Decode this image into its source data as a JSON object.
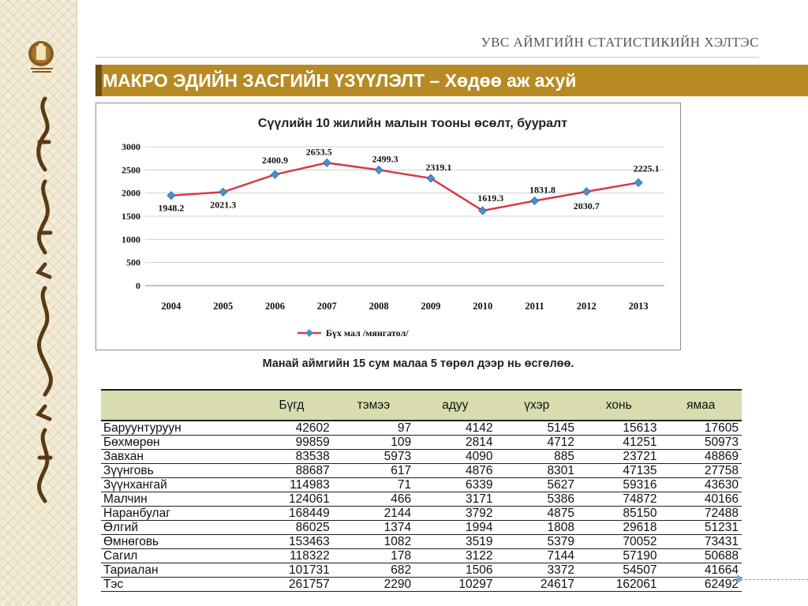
{
  "header": {
    "title": "УВС АЙМГИЙН СТАТИСТИКИЙН ХЭЛТЭС"
  },
  "banner": {
    "title": "МАКРО ЭДИЙН ЗАСГИЙН ҮЗҮҮЛЭЛТ – Хөдөө аж ахуй"
  },
  "colors": {
    "accent": "#b88a24",
    "line": "#4a90c8",
    "table_header": "#d8dcae"
  },
  "chart_data": {
    "type": "line",
    "title": "Сүүлийн 10 жилийн малын тооны өсөлт, бууралт",
    "categories": [
      "2004",
      "2005",
      "2006",
      "2007",
      "2008",
      "2009",
      "2010",
      "2011",
      "2012",
      "2013"
    ],
    "series": [
      {
        "name": "Бүх мал /мянгатол/",
        "values": [
          1948.2,
          2021.3,
          2400.9,
          2653.5,
          2499.3,
          2319.1,
          1619.3,
          1831.8,
          2030.7,
          2225.1
        ]
      }
    ],
    "data_labels": [
      "1948.2",
      "2021.3",
      "2400.9",
      "2653.5",
      "2499.3",
      "2319.1",
      "1619.3",
      "1831.8",
      "2030.7",
      "2225.1"
    ],
    "ylim": [
      0,
      3000
    ],
    "yticks": [
      "0",
      "500",
      "1000",
      "1500",
      "2000",
      "2500",
      "3000"
    ],
    "xlabel": "",
    "ylabel": "",
    "grid": true,
    "legend": "bottom"
  },
  "caption": "Манай аймгийн 15 сум малаа 5 төрөл дээр нь өсгөлөө.",
  "table": {
    "headers": [
      "",
      "Бүгд",
      "тэмээ",
      "адуу",
      "үхэр",
      "хонь",
      "ямаа"
    ],
    "rows": [
      [
        "Баруунтуруун",
        "42602",
        "97",
        "4142",
        "5145",
        "15613",
        "17605"
      ],
      [
        "Бөхмөрөн",
        "99859",
        "109",
        "2814",
        "4712",
        "41251",
        "50973"
      ],
      [
        "Завхан",
        "83538",
        "5973",
        "4090",
        "885",
        "23721",
        "48869"
      ],
      [
        "Зүүнговь",
        "88687",
        "617",
        "4876",
        "8301",
        "47135",
        "27758"
      ],
      [
        "Зүүнхангай",
        "114983",
        "71",
        "6339",
        "5627",
        "59316",
        "43630"
      ],
      [
        "Малчин",
        "124061",
        "466",
        "3171",
        "5386",
        "74872",
        "40166"
      ],
      [
        "Наранбулаг",
        "168449",
        "2144",
        "3792",
        "4875",
        "85150",
        "72488"
      ],
      [
        "Өлгий",
        "86025",
        "1374",
        "1994",
        "1808",
        "29618",
        "51231"
      ],
      [
        "Өмнөговь",
        "153463",
        "1082",
        "3519",
        "5379",
        "70052",
        "73431"
      ],
      [
        "Сагил",
        "118322",
        "178",
        "3122",
        "7144",
        "57190",
        "50688"
      ],
      [
        "Тариалан",
        "101731",
        "682",
        "1506",
        "3372",
        "54507",
        "41664"
      ],
      [
        "Тэс",
        "261757",
        "2290",
        "10297",
        "24617",
        "162061",
        "62492"
      ]
    ]
  }
}
